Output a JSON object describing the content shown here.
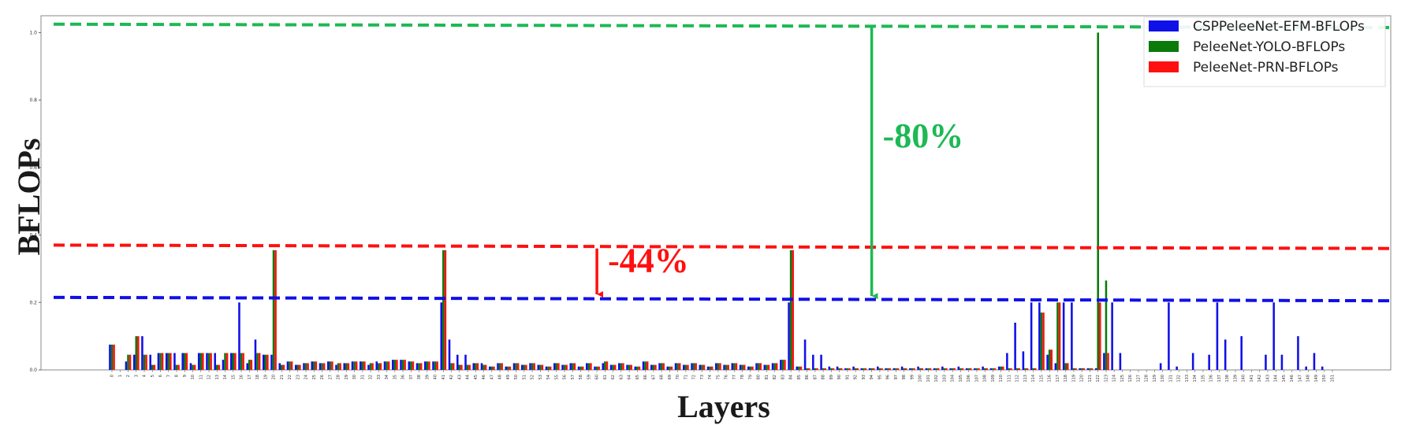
{
  "chart_data": {
    "type": "bar",
    "xlabel": "Layers",
    "ylabel": "BFLOPs",
    "ylim": [
      0,
      1.05
    ],
    "yticks": [
      0.0,
      0.2,
      0.4,
      0.6,
      0.8,
      1.0
    ],
    "grid": false,
    "legend_position": "top-right",
    "series": [
      {
        "name": "CSPPeleeNet-EFM-BFLOPs",
        "color": "#1010e8",
        "values": [
          0.075,
          0,
          0.025,
          0.045,
          0.1,
          0.045,
          0.05,
          0.05,
          0.05,
          0.05,
          0.02,
          0.05,
          0.05,
          0.05,
          0.03,
          0.05,
          0.2,
          0.02,
          0.09,
          0.045,
          0.045,
          0.02,
          0.025,
          0.015,
          0.02,
          0.025,
          0.02,
          0.025,
          0.015,
          0.02,
          0.025,
          0.025,
          0.015,
          0.025,
          0.025,
          0.03,
          0.03,
          0.025,
          0.02,
          0.025,
          0.025,
          0.2,
          0.09,
          0.045,
          0.045,
          0.02,
          0.02,
          0.01,
          0.02,
          0.01,
          0.02,
          0.015,
          0.02,
          0.015,
          0.01,
          0.02,
          0.015,
          0.02,
          0.01,
          0.02,
          0.01,
          0.02,
          0.015,
          0.02,
          0.015,
          0.01,
          0.025,
          0.015,
          0.02,
          0.01,
          0.02,
          0.015,
          0.02,
          0.015,
          0.01,
          0.02,
          0.015,
          0.02,
          0.015,
          0.01,
          0.02,
          0.015,
          0.02,
          0.03,
          0.2,
          0.01,
          0.09,
          0.045,
          0.045,
          0.01,
          0.01,
          0.005,
          0.01,
          0.005,
          0.005,
          0.01,
          0.005,
          0.005,
          0.01,
          0.005,
          0.01,
          0.005,
          0.005,
          0.01,
          0.005,
          0.01,
          0.005,
          0.005,
          0.01,
          0.005,
          0.01,
          0.05,
          0.14,
          0.055,
          0.2,
          0.2,
          0.045,
          0.02,
          0.2,
          0.2,
          0.005,
          0.005,
          0.005,
          0.05,
          0.2,
          0.05,
          0,
          0,
          0,
          0,
          0.02,
          0.2,
          0.01,
          0,
          0.05,
          0,
          0.045,
          0.2,
          0.09,
          0,
          0.1,
          0,
          0,
          0.045,
          0.2,
          0.045,
          0,
          0.1,
          0.01,
          0.05,
          0.01,
          0
        ],
        "values_note_removed": true
      },
      {
        "name": "PeleeNet-YOLO-BFLOPs",
        "color": "#0a7a0a",
        "values": [
          0.075,
          0,
          0.045,
          0.1,
          0.045,
          0.015,
          0.05,
          0.05,
          0.015,
          0.05,
          0.015,
          0.05,
          0.05,
          0.015,
          0.05,
          0.05,
          0.05,
          0.03,
          0.05,
          0.045,
          0.355,
          0.015,
          0.025,
          0.015,
          0.02,
          0.025,
          0.02,
          0.025,
          0.02,
          0.02,
          0.025,
          0.025,
          0.02,
          0.02,
          0.025,
          0.03,
          0.03,
          0.025,
          0.02,
          0.025,
          0.025,
          0.355,
          0.02,
          0.015,
          0.015,
          0.02,
          0.015,
          0.01,
          0.02,
          0.01,
          0.02,
          0.015,
          0.02,
          0.015,
          0.01,
          0.02,
          0.015,
          0.02,
          0.01,
          0.02,
          0.01,
          0.025,
          0.015,
          0.02,
          0.015,
          0.01,
          0.025,
          0.015,
          0.02,
          0.01,
          0.02,
          0.015,
          0.02,
          0.015,
          0.01,
          0.02,
          0.015,
          0.02,
          0.015,
          0.01,
          0.02,
          0.015,
          0.02,
          0.03,
          0.355,
          0.01,
          0.005,
          0.005,
          0.005,
          0.005,
          0.005,
          0.005,
          0.005,
          0.005,
          0.005,
          0.005,
          0.005,
          0.005,
          0.005,
          0.005,
          0.005,
          0.005,
          0.005,
          0.005,
          0.005,
          0.005,
          0.005,
          0.005,
          0.005,
          0.005,
          0.01,
          0.005,
          0.005,
          0.005,
          0.005,
          0.17,
          0.06,
          0.2,
          0.02,
          0.005,
          0.005,
          0.005,
          1.0,
          0.265,
          0,
          0,
          0,
          0,
          0,
          0,
          0,
          0,
          0,
          0,
          0,
          0,
          0,
          0,
          0,
          0,
          0,
          0,
          0,
          0,
          0,
          0,
          0,
          0,
          0,
          0,
          0,
          0
        ]
      },
      {
        "name": "PeleeNet-PRN-BFLOPs",
        "color": "#ff1010",
        "values": [
          0.075,
          0,
          0.045,
          0.1,
          0.045,
          0.015,
          0.05,
          0.05,
          0.015,
          0.05,
          0.015,
          0.05,
          0.05,
          0.015,
          0.05,
          0.05,
          0.05,
          0.03,
          0.05,
          0.045,
          0.355,
          0.015,
          0.025,
          0.015,
          0.02,
          0.025,
          0.02,
          0.025,
          0.02,
          0.02,
          0.025,
          0.025,
          0.02,
          0.02,
          0.025,
          0.03,
          0.03,
          0.025,
          0.02,
          0.025,
          0.025,
          0.355,
          0.02,
          0.015,
          0.015,
          0.02,
          0.015,
          0.01,
          0.02,
          0.01,
          0.02,
          0.015,
          0.02,
          0.015,
          0.01,
          0.02,
          0.015,
          0.02,
          0.01,
          0.02,
          0.01,
          0.025,
          0.015,
          0.02,
          0.015,
          0.01,
          0.025,
          0.015,
          0.02,
          0.01,
          0.02,
          0.015,
          0.02,
          0.015,
          0.01,
          0.02,
          0.015,
          0.02,
          0.015,
          0.01,
          0.02,
          0.015,
          0.02,
          0.03,
          0.355,
          0.01,
          0.005,
          0.005,
          0.005,
          0.005,
          0.005,
          0.005,
          0.005,
          0.005,
          0.005,
          0.005,
          0.005,
          0.005,
          0.005,
          0.005,
          0.005,
          0.005,
          0.005,
          0.005,
          0.005,
          0.005,
          0.005,
          0.005,
          0.005,
          0.005,
          0.01,
          0.005,
          0.005,
          0.005,
          0.005,
          0.17,
          0.06,
          0.2,
          0.02,
          0.005,
          0.005,
          0.005,
          0.2,
          0.05,
          0,
          0,
          0,
          0,
          0,
          0,
          0,
          0,
          0,
          0,
          0,
          0,
          0,
          0,
          0,
          0,
          0,
          0,
          0,
          0,
          0,
          0,
          0,
          0,
          0,
          0,
          0,
          0
        ]
      }
    ],
    "reference_lines": [
      {
        "series": "PeleeNet-YOLO-BFLOPs",
        "value": 1.025,
        "value_end": 1.015,
        "color": "#1db954"
      },
      {
        "series": "PeleeNet-PRN-BFLOPs",
        "value": 0.37,
        "value_end": 0.36,
        "color": "#ff1010"
      },
      {
        "series": "CSPPeleeNet-EFM-BFLOPs",
        "value": 0.215,
        "value_end": 0.205,
        "color": "#1010e8"
      }
    ],
    "annotations": [
      {
        "text": "-80%",
        "color": "#1db954",
        "arrow_x_layer": 94,
        "from": 1.015,
        "to": 0.205
      },
      {
        "text": "-44%",
        "color": "#ff1010",
        "arrow_x_layer": 60,
        "from": 0.36,
        "to": 0.21
      }
    ]
  }
}
